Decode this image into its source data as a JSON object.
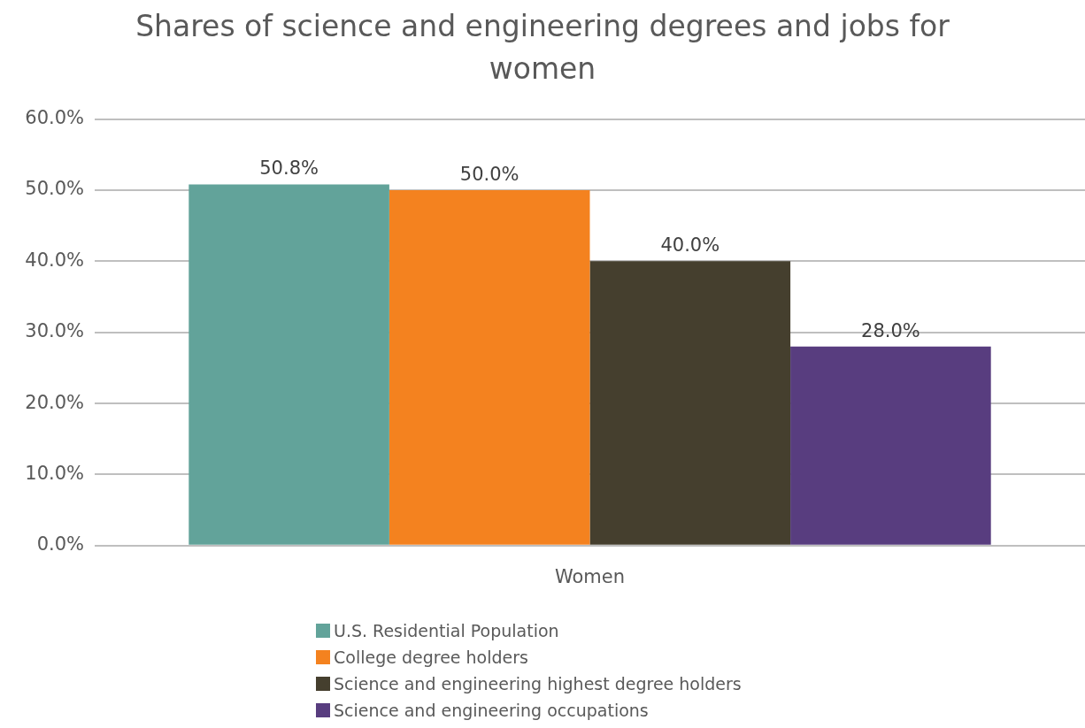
{
  "chart_data": {
    "type": "bar",
    "title": "Shares of science and engineering degrees and jobs for women",
    "categories": [
      "Women"
    ],
    "series": [
      {
        "name": "U.S. Residential Population",
        "color": "#62a39a",
        "values": [
          50.8
        ],
        "value_labels": [
          "50.8%"
        ]
      },
      {
        "name": "College degree holders",
        "color": "#f4821f",
        "values": [
          50.0
        ],
        "value_labels": [
          "50.0%"
        ]
      },
      {
        "name": "Science and engineering highest degree holders",
        "color": "#453f2e",
        "values": [
          40.0
        ],
        "value_labels": [
          "40.0%"
        ]
      },
      {
        "name": "Science and engineering occupations",
        "color": "#583d7f",
        "values": [
          28.0
        ],
        "value_labels": [
          "28.0%"
        ]
      }
    ],
    "ylim": [
      0,
      60
    ],
    "yticks": [
      {
        "value": 0,
        "label": "0.0%"
      },
      {
        "value": 10,
        "label": "10.0%"
      },
      {
        "value": 20,
        "label": "20.0%"
      },
      {
        "value": 30,
        "label": "30.0%"
      },
      {
        "value": 40,
        "label": "40.0%"
      },
      {
        "value": 50,
        "label": "50.0%"
      },
      {
        "value": 60,
        "label": "60.0%"
      }
    ],
    "grid": "y",
    "legend": "bottom"
  }
}
